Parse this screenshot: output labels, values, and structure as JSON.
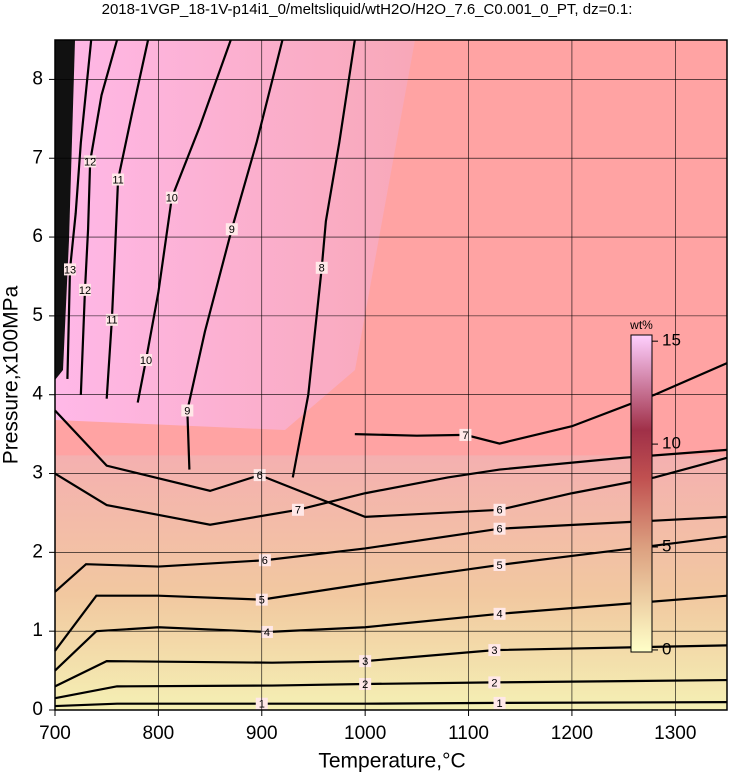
{
  "chart_data": {
    "type": "contour",
    "title": "2018-1VGP_18-1V-p14i1_0/meltsliquid/wtH2O/H2O_7.6_C0.001_0_PT, dz=0.1:",
    "x_label": "Temperature,°C",
    "y_label": "Pressure,x100MPa",
    "xlim": [
      700,
      1350
    ],
    "xticks": [
      700,
      800,
      900,
      1000,
      1100,
      1200,
      1300
    ],
    "ylim": [
      0,
      8.5
    ],
    "yticks": [
      0,
      1,
      2,
      3,
      4,
      5,
      6,
      7,
      8
    ],
    "grid": true,
    "contours": [
      {
        "level": 1,
        "x": [
          700,
          760,
          900,
          1000,
          1130,
          1350
        ],
        "y": [
          0.05,
          0.08,
          0.08,
          0.08,
          0.09,
          0.1
        ]
      },
      {
        "level": 2,
        "x": [
          700,
          760,
          910,
          1000,
          1125,
          1350
        ],
        "y": [
          0.15,
          0.3,
          0.31,
          0.33,
          0.35,
          0.38
        ]
      },
      {
        "level": 3,
        "x": [
          700,
          750,
          910,
          1000,
          1125,
          1350
        ],
        "y": [
          0.3,
          0.62,
          0.6,
          0.62,
          0.76,
          0.82
        ]
      },
      {
        "level": 4,
        "x": [
          700,
          740,
          800,
          905,
          1000,
          1130,
          1350
        ],
        "y": [
          0.5,
          1.0,
          1.05,
          0.99,
          1.05,
          1.22,
          1.45
        ]
      },
      {
        "level": 5,
        "x": [
          700,
          740,
          800,
          900,
          1000,
          1130,
          1350
        ],
        "y": [
          0.75,
          1.45,
          1.45,
          1.4,
          1.6,
          1.84,
          2.2
        ]
      },
      {
        "level": 6,
        "x": [
          700,
          730,
          800,
          903,
          1000,
          1130,
          1350
        ],
        "y": [
          1.5,
          1.85,
          1.82,
          1.9,
          2.05,
          2.3,
          2.45
        ]
      },
      {
        "level": 7,
        "x": [
          700,
          750,
          850,
          935,
          1000,
          1080,
          1130,
          1250,
          1350
        ],
        "y": [
          3.0,
          2.6,
          2.35,
          2.54,
          2.75,
          2.95,
          3.05,
          3.2,
          3.3
        ]
      },
      {
        "level": 6,
        "x": [
          700,
          750,
          850,
          898,
          1000,
          1130,
          1200,
          1280,
          1350
        ],
        "y": [
          3.8,
          3.1,
          2.78,
          2.98,
          2.45,
          2.54,
          2.75,
          2.95,
          3.2
        ]
      },
      {
        "level": 7,
        "x": [
          990,
          1050,
          1097,
          1130,
          1200,
          1280,
          1350
        ],
        "y": [
          3.5,
          3.48,
          3.49,
          3.38,
          3.6,
          4.0,
          4.4
        ]
      },
      {
        "level": 8,
        "x": [
          930,
          945,
          958,
          962,
          975,
          990
        ],
        "y": [
          2.95,
          4.0,
          5.61,
          6.2,
          7.2,
          8.5
        ]
      },
      {
        "level": 9,
        "x": [
          830,
          828,
          845,
          871,
          895,
          920
        ],
        "y": [
          3.05,
          3.8,
          4.8,
          6.1,
          7.2,
          8.5
        ]
      },
      {
        "level": 10,
        "x": [
          780,
          788,
          800,
          813,
          840,
          870
        ],
        "y": [
          3.9,
          4.44,
          5.3,
          6.5,
          7.4,
          8.5
        ]
      },
      {
        "level": 11,
        "x": [
          750,
          755,
          758,
          761,
          775,
          790
        ],
        "y": [
          3.95,
          4.95,
          5.8,
          6.73,
          7.6,
          8.5
        ]
      },
      {
        "level": 12,
        "x": [
          725,
          729,
          732,
          734,
          745,
          760
        ],
        "y": [
          4.0,
          5.33,
          6.1,
          6.96,
          7.8,
          8.5
        ]
      },
      {
        "level": 13,
        "x": [
          712,
          714.5,
          720,
          725,
          735
        ],
        "y": [
          4.2,
          5.59,
          6.3,
          7.2,
          8.5
        ]
      }
    ],
    "colorbar": {
      "label": "wt%",
      "lim": [
        -0.1,
        15.3
      ],
      "ticks": [
        0,
        5,
        10,
        15
      ]
    }
  }
}
